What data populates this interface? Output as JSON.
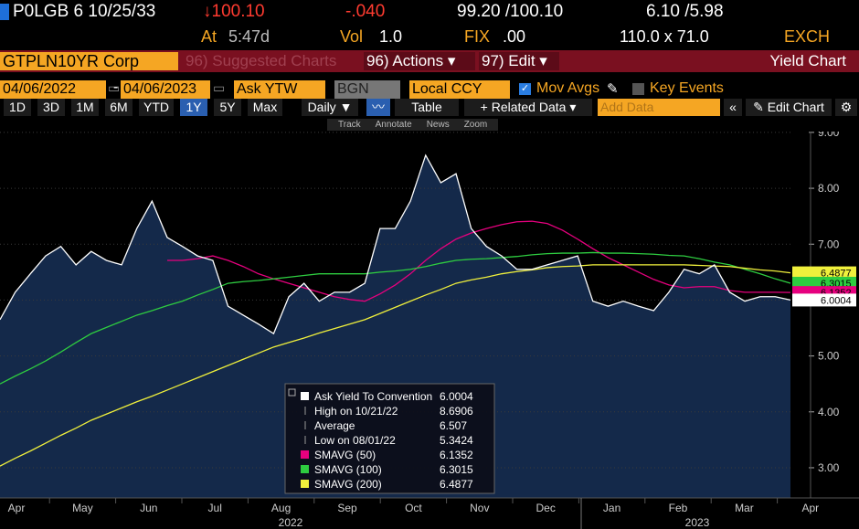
{
  "header": {
    "ticker": "P0LGB 6 10/25/33",
    "last": "↓100.10",
    "change": "-.040",
    "bid_ask": "99.20 /100.10",
    "yields": "6.10 /5.98",
    "time_label": "At",
    "time": "5:47d",
    "vol_label": "Vol",
    "vol": "1.0",
    "fix_label": "FIX",
    "fix": ".00",
    "size": "110.0 x 71.0",
    "source": "EXCH"
  },
  "menu": {
    "security": "GTPLN10YR Corp",
    "suggested": "96) Suggested Charts",
    "actions": "96) Actions ▾",
    "edit": "97) Edit ▾",
    "title": "Yield Chart"
  },
  "controls": {
    "start": "04/06/2022",
    "end": "04/06/2023",
    "field": "Ask YTW",
    "source": "BGN",
    "currency": "Local CCY",
    "mov_avgs": "Mov Avgs",
    "key_events": "Key Events"
  },
  "periods": [
    "1D",
    "3D",
    "1M",
    "6M",
    "YTD",
    "1Y",
    "5Y",
    "Max"
  ],
  "active_period": "1Y",
  "toolbar": {
    "frequency": "Daily ▼",
    "table": "Table",
    "related": "+ Related Data ▾",
    "add_data": "Add Data",
    "edit_chart": "Edit Chart"
  },
  "chart_tools": [
    "Track",
    "Annotate",
    "News",
    "Zoom"
  ],
  "chart_data": {
    "type": "line",
    "area": true,
    "grid": true,
    "ylim": [
      2.46,
      9.08
    ],
    "yticks": [
      {
        "value": 3,
        "label": "3.00"
      },
      {
        "value": 4,
        "label": "4.00"
      },
      {
        "value": 5,
        "label": "5.00"
      },
      {
        "value": 6,
        "label": "6.00"
      },
      {
        "value": 7,
        "label": "7.00"
      },
      {
        "value": 8,
        "label": "8.00"
      },
      {
        "value": 9,
        "label": "9.00"
      }
    ],
    "x_labels": [
      "Apr",
      "May",
      "Jun",
      "Jul",
      "Aug",
      "Sep",
      "Oct",
      "Nov",
      "Dec",
      "Jan",
      "Feb",
      "Mar",
      "Apr"
    ],
    "years": [
      "2022",
      "2023"
    ],
    "series": [
      {
        "name": "Ask Yield To Convention",
        "color": "#ffffff",
        "fill": "#14294a",
        "last_label": "6.0004",
        "values": [
          5.65,
          6.14,
          6.47,
          6.79,
          6.96,
          6.63,
          6.87,
          6.71,
          6.63,
          7.28,
          7.77,
          7.12,
          6.96,
          6.79,
          6.71,
          5.89,
          5.73,
          5.57,
          5.4,
          6.06,
          6.3,
          5.98,
          6.14,
          6.14,
          6.3,
          7.28,
          7.28,
          7.77,
          8.59,
          8.1,
          8.26,
          7.28,
          6.96,
          6.79,
          6.55,
          6.55,
          6.63,
          6.71,
          6.79,
          5.98,
          5.89,
          5.98,
          5.89,
          5.81,
          6.14,
          6.55,
          6.47,
          6.63,
          6.14,
          5.98,
          6.06,
          6.06,
          6.0004
        ]
      },
      {
        "name": "SMAVG (50)",
        "color": "#e6007e",
        "last_label": "6.1352",
        "values": [
          null,
          null,
          null,
          null,
          null,
          null,
          null,
          null,
          null,
          null,
          null,
          6.71,
          6.71,
          6.74,
          6.79,
          6.71,
          6.6,
          6.47,
          6.38,
          6.3,
          6.22,
          6.14,
          6.06,
          6.01,
          5.98,
          6.11,
          6.27,
          6.47,
          6.71,
          6.92,
          7.09,
          7.2,
          7.28,
          7.35,
          7.4,
          7.41,
          7.37,
          7.25,
          7.09,
          6.92,
          6.76,
          6.63,
          6.5,
          6.37,
          6.27,
          6.22,
          6.24,
          6.24,
          6.17,
          6.14,
          6.14,
          6.14,
          6.1352
        ]
      },
      {
        "name": "SMAVG (100)",
        "color": "#2ecc40",
        "last_label": "6.3015",
        "values": [
          4.5,
          4.64,
          4.77,
          4.91,
          5.07,
          5.24,
          5.4,
          5.51,
          5.62,
          5.73,
          5.81,
          5.9,
          5.98,
          6.09,
          6.19,
          6.3,
          6.33,
          6.35,
          6.38,
          6.41,
          6.44,
          6.47,
          6.47,
          6.47,
          6.47,
          6.5,
          6.52,
          6.55,
          6.6,
          6.66,
          6.71,
          6.73,
          6.74,
          6.76,
          6.78,
          6.81,
          6.83,
          6.84,
          6.84,
          6.85,
          6.84,
          6.84,
          6.83,
          6.82,
          6.8,
          6.79,
          6.74,
          6.68,
          6.63,
          6.55,
          6.47,
          6.38,
          6.3015
        ]
      },
      {
        "name": "SMAVG (200)",
        "color": "#f0f03c",
        "last_label": "6.4877",
        "values": [
          3.03,
          3.17,
          3.3,
          3.44,
          3.58,
          3.71,
          3.85,
          3.96,
          4.07,
          4.18,
          4.28,
          4.39,
          4.5,
          4.61,
          4.72,
          4.83,
          4.94,
          5.05,
          5.16,
          5.24,
          5.32,
          5.41,
          5.49,
          5.57,
          5.65,
          5.76,
          5.87,
          5.98,
          6.09,
          6.19,
          6.3,
          6.36,
          6.41,
          6.47,
          6.51,
          6.54,
          6.58,
          6.6,
          6.61,
          6.63,
          6.63,
          6.63,
          6.63,
          6.63,
          6.63,
          6.63,
          6.62,
          6.61,
          6.6,
          6.57,
          6.54,
          6.52,
          6.4877
        ]
      }
    ],
    "stats": [
      {
        "name": "High on 10/21/22",
        "value": 8.6906
      },
      {
        "name": "Average",
        "value": 6.507
      },
      {
        "name": "Low on 08/01/22",
        "value": 5.3424
      }
    ]
  }
}
